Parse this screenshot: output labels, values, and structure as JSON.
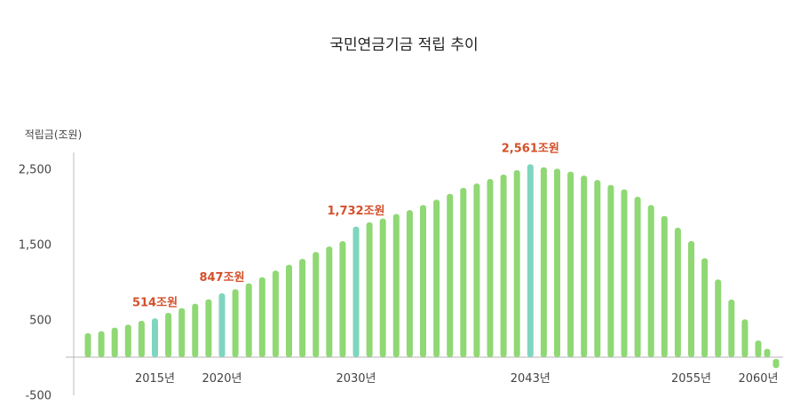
{
  "chart_data": {
    "type": "bar",
    "title": "국민연금기금 적립 추이",
    "ylabel": "적립금(조원)",
    "xlabel": "",
    "ylim": [
      -500,
      2600
    ],
    "y_ticks": [
      {
        "value": 2500,
        "label": "2,500"
      },
      {
        "value": 1500,
        "label": "1,500"
      },
      {
        "value": 500,
        "label": "500"
      },
      {
        "value": -500,
        "label": "-500"
      }
    ],
    "x_ticks": [
      {
        "year": 2015,
        "label": "2015년"
      },
      {
        "year": 2020,
        "label": "2020년"
      },
      {
        "year": 2030,
        "label": "2030년"
      },
      {
        "year": 2043,
        "label": "2043년"
      },
      {
        "year": 2055,
        "label": "2055년"
      },
      {
        "year": 2060,
        "label": "2060년"
      }
    ],
    "x": [
      2010,
      2011,
      2012,
      2013,
      2014,
      2015,
      2016,
      2017,
      2018,
      2019,
      2020,
      2021,
      2022,
      2023,
      2024,
      2025,
      2026,
      2027,
      2028,
      2029,
      2030,
      2031,
      2032,
      2033,
      2034,
      2035,
      2036,
      2037,
      2038,
      2039,
      2040,
      2041,
      2042,
      2043,
      2044,
      2045,
      2046,
      2047,
      2048,
      2049,
      2050,
      2051,
      2052,
      2053,
      2054,
      2055,
      2056,
      2057,
      2058,
      2059,
      2060,
      2061,
      2062
    ],
    "values": [
      317,
      344,
      391,
      431,
      482,
      514,
      588,
      650,
      709,
      767,
      847,
      901,
      979,
      1061,
      1148,
      1226,
      1304,
      1395,
      1469,
      1539,
      1732,
      1790,
      1840,
      1900,
      1952,
      2019,
      2090,
      2168,
      2247,
      2305,
      2364,
      2423,
      2482,
      2561,
      2520,
      2501,
      2462,
      2411,
      2352,
      2285,
      2226,
      2129,
      2019,
      1874,
      1717,
      1541,
      1313,
      1031,
      764,
      502,
      220,
      110,
      -120
    ],
    "highlight_years": [
      2015,
      2020,
      2030,
      2043
    ],
    "annotations": [
      {
        "year": 2015,
        "label": "514조원"
      },
      {
        "year": 2020,
        "label": "847조원"
      },
      {
        "year": 2030,
        "label": "1,732조원"
      },
      {
        "year": 2043,
        "label": "2,561조원"
      }
    ],
    "grid": false,
    "legend": "none",
    "colors": {
      "bar": "#8fd874",
      "highlight": "#7fd6bf",
      "annotation": "#d4502a",
      "axis": "#b5b5b5",
      "text": "#444444"
    }
  }
}
